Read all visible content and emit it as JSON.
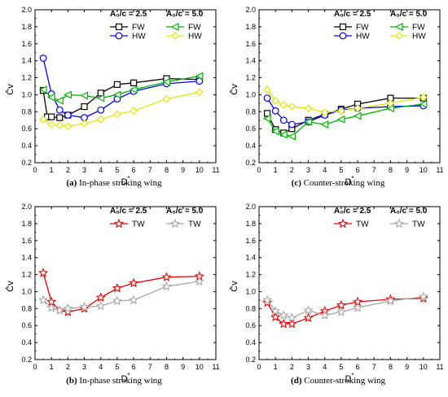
{
  "chart_data": [
    {
      "type": "line",
      "caption": {
        "letter": "(a)",
        "text": "In-phase stroking wing"
      },
      "xlabel": "D*",
      "ylabel": "C̄v",
      "xlim": [
        0,
        11
      ],
      "ylim": [
        0.2,
        2.0
      ],
      "xticks": [
        "0",
        "1",
        "2",
        "3",
        "4",
        "5",
        "6",
        "7",
        "8",
        "9",
        "10",
        "11"
      ],
      "yticks": [
        "0.2",
        "0.4",
        "0.6",
        "0.8",
        "1.0",
        "1.2",
        "1.4",
        "1.6",
        "1.8",
        "2.0"
      ],
      "legend_headers": [
        "A₀/c = 2.5",
        "A₀/c = 5.0"
      ],
      "series": [
        {
          "name": "FW",
          "group": 0,
          "color": "#000000",
          "marker": "square",
          "x": [
            0.5,
            0.75,
            1,
            1.5,
            2,
            3,
            4,
            5,
            6,
            8,
            10
          ],
          "y": [
            1.05,
            0.74,
            0.74,
            0.73,
            0.76,
            0.86,
            1.02,
            1.12,
            1.14,
            1.19,
            1.18
          ]
        },
        {
          "name": "HW",
          "group": 0,
          "color": "#0000ff",
          "marker": "circle",
          "x": [
            0.5,
            1,
            1.5,
            2,
            3,
            4,
            5,
            6,
            8,
            10
          ],
          "y": [
            1.43,
            1.01,
            0.82,
            0.76,
            0.73,
            0.82,
            0.95,
            1.04,
            1.13,
            1.16
          ]
        },
        {
          "name": "FW",
          "group": 1,
          "color": "#00b400",
          "marker": "triangle-left",
          "x": [
            0.5,
            1,
            1.5,
            2,
            3,
            4,
            5,
            6,
            8,
            10
          ],
          "y": [
            1.06,
            0.97,
            0.93,
            1.0,
            0.99,
            0.96,
            1.0,
            1.06,
            1.15,
            1.22
          ]
        },
        {
          "name": "HW",
          "group": 1,
          "color": "#e6e600",
          "marker": "diamond",
          "x": [
            0.5,
            1,
            1.5,
            2,
            3,
            4,
            5,
            6,
            8,
            10
          ],
          "y": [
            0.71,
            0.65,
            0.64,
            0.63,
            0.66,
            0.71,
            0.77,
            0.81,
            0.95,
            1.03
          ]
        }
      ]
    },
    {
      "type": "line",
      "caption": {
        "letter": "(c)",
        "text": "Counter-stroking wing"
      },
      "xlabel": "D*",
      "ylabel": "C̄v",
      "xlim": [
        0,
        11
      ],
      "ylim": [
        0.2,
        2.0
      ],
      "xticks": [
        "0",
        "1",
        "2",
        "3",
        "4",
        "5",
        "6",
        "7",
        "8",
        "9",
        "10",
        "11"
      ],
      "yticks": [
        "0.2",
        "0.4",
        "0.6",
        "0.8",
        "1.0",
        "1.2",
        "1.4",
        "1.6",
        "1.8",
        "2.0"
      ],
      "legend_headers": [
        "A₀/c = 2.5",
        "A₀/c = 5.0"
      ],
      "series": [
        {
          "name": "FW",
          "group": 0,
          "color": "#000000",
          "marker": "square",
          "x": [
            0.5,
            1,
            1.5,
            2,
            3,
            4,
            5,
            6,
            8,
            10
          ],
          "y": [
            0.78,
            0.59,
            0.55,
            0.6,
            0.7,
            0.77,
            0.83,
            0.89,
            0.96,
            0.96
          ]
        },
        {
          "name": "HW",
          "group": 0,
          "color": "#0000ff",
          "marker": "circle",
          "x": [
            0.5,
            1,
            1.5,
            2,
            3,
            4,
            5,
            6,
            8,
            10
          ],
          "y": [
            0.96,
            0.81,
            0.7,
            0.65,
            0.68,
            0.76,
            0.82,
            0.84,
            0.86,
            0.87
          ]
        },
        {
          "name": "FW",
          "group": 1,
          "color": "#00b400",
          "marker": "triangle-left",
          "x": [
            0.5,
            1,
            1.5,
            2,
            3,
            4,
            5,
            6,
            8,
            10
          ],
          "y": [
            0.72,
            0.57,
            0.53,
            0.51,
            0.68,
            0.65,
            0.71,
            0.75,
            0.84,
            0.89
          ]
        },
        {
          "name": "HW",
          "group": 1,
          "color": "#e6e600",
          "marker": "diamond",
          "x": [
            0.5,
            1,
            1.5,
            2,
            3,
            4,
            5,
            6,
            8,
            10
          ],
          "y": [
            1.06,
            0.93,
            0.88,
            0.86,
            0.84,
            0.79,
            0.81,
            0.84,
            0.9,
            0.97
          ]
        }
      ]
    },
    {
      "type": "line",
      "caption": {
        "letter": "(b)",
        "text": "In-phase stroking wing"
      },
      "xlabel": "D*",
      "ylabel": "C̄v",
      "xlim": [
        0,
        11
      ],
      "ylim": [
        0.2,
        2.0
      ],
      "xticks": [
        "0",
        "1",
        "2",
        "3",
        "4",
        "5",
        "6",
        "7",
        "8",
        "9",
        "10",
        "11"
      ],
      "yticks": [
        "0.2",
        "0.4",
        "0.6",
        "0.8",
        "1.0",
        "1.2",
        "1.4",
        "1.6",
        "1.8",
        "2.0"
      ],
      "legend_headers": [
        "A₀/c = 2.5",
        "A₀/c = 5.0"
      ],
      "series": [
        {
          "name": "TW",
          "group": 0,
          "color": "#ee0000",
          "marker": "star",
          "x": [
            0.5,
            1,
            1.5,
            2,
            3,
            4,
            5,
            6,
            8,
            10
          ],
          "y": [
            1.22,
            0.88,
            0.78,
            0.76,
            0.8,
            0.93,
            1.04,
            1.1,
            1.17,
            1.18
          ]
        },
        {
          "name": "TW",
          "group": 1,
          "color": "#a8a8a8",
          "marker": "star",
          "x": [
            0.5,
            1,
            1.5,
            2,
            3,
            4,
            5,
            6,
            8,
            10
          ],
          "y": [
            0.9,
            0.81,
            0.78,
            0.8,
            0.82,
            0.83,
            0.89,
            0.9,
            1.06,
            1.12
          ]
        }
      ]
    },
    {
      "type": "line",
      "caption": {
        "letter": "(d)",
        "text": "Counter-stroking wing"
      },
      "xlabel": "D*",
      "ylabel": "C̄v",
      "xlim": [
        0,
        11
      ],
      "ylim": [
        0.2,
        2.0
      ],
      "xticks": [
        "0",
        "1",
        "2",
        "3",
        "4",
        "5",
        "6",
        "7",
        "8",
        "9",
        "10",
        "11"
      ],
      "yticks": [
        "0.2",
        "0.4",
        "0.6",
        "0.8",
        "1.0",
        "1.2",
        "1.4",
        "1.6",
        "1.8",
        "2.0"
      ],
      "legend_headers": [
        "A₀/c = 2.5",
        "A₀/c = 5.0"
      ],
      "series": [
        {
          "name": "TW",
          "group": 0,
          "color": "#ee0000",
          "marker": "star",
          "x": [
            0.5,
            1,
            1.5,
            2,
            3,
            4,
            5,
            6,
            8,
            10
          ],
          "y": [
            0.87,
            0.7,
            0.62,
            0.62,
            0.69,
            0.77,
            0.84,
            0.88,
            0.91,
            0.92
          ]
        },
        {
          "name": "TW",
          "group": 1,
          "color": "#a8a8a8",
          "marker": "star",
          "x": [
            0.5,
            1,
            1.5,
            2,
            3,
            4,
            5,
            6,
            8,
            10
          ],
          "y": [
            0.9,
            0.77,
            0.72,
            0.69,
            0.78,
            0.72,
            0.76,
            0.81,
            0.89,
            0.94
          ]
        }
      ]
    }
  ]
}
